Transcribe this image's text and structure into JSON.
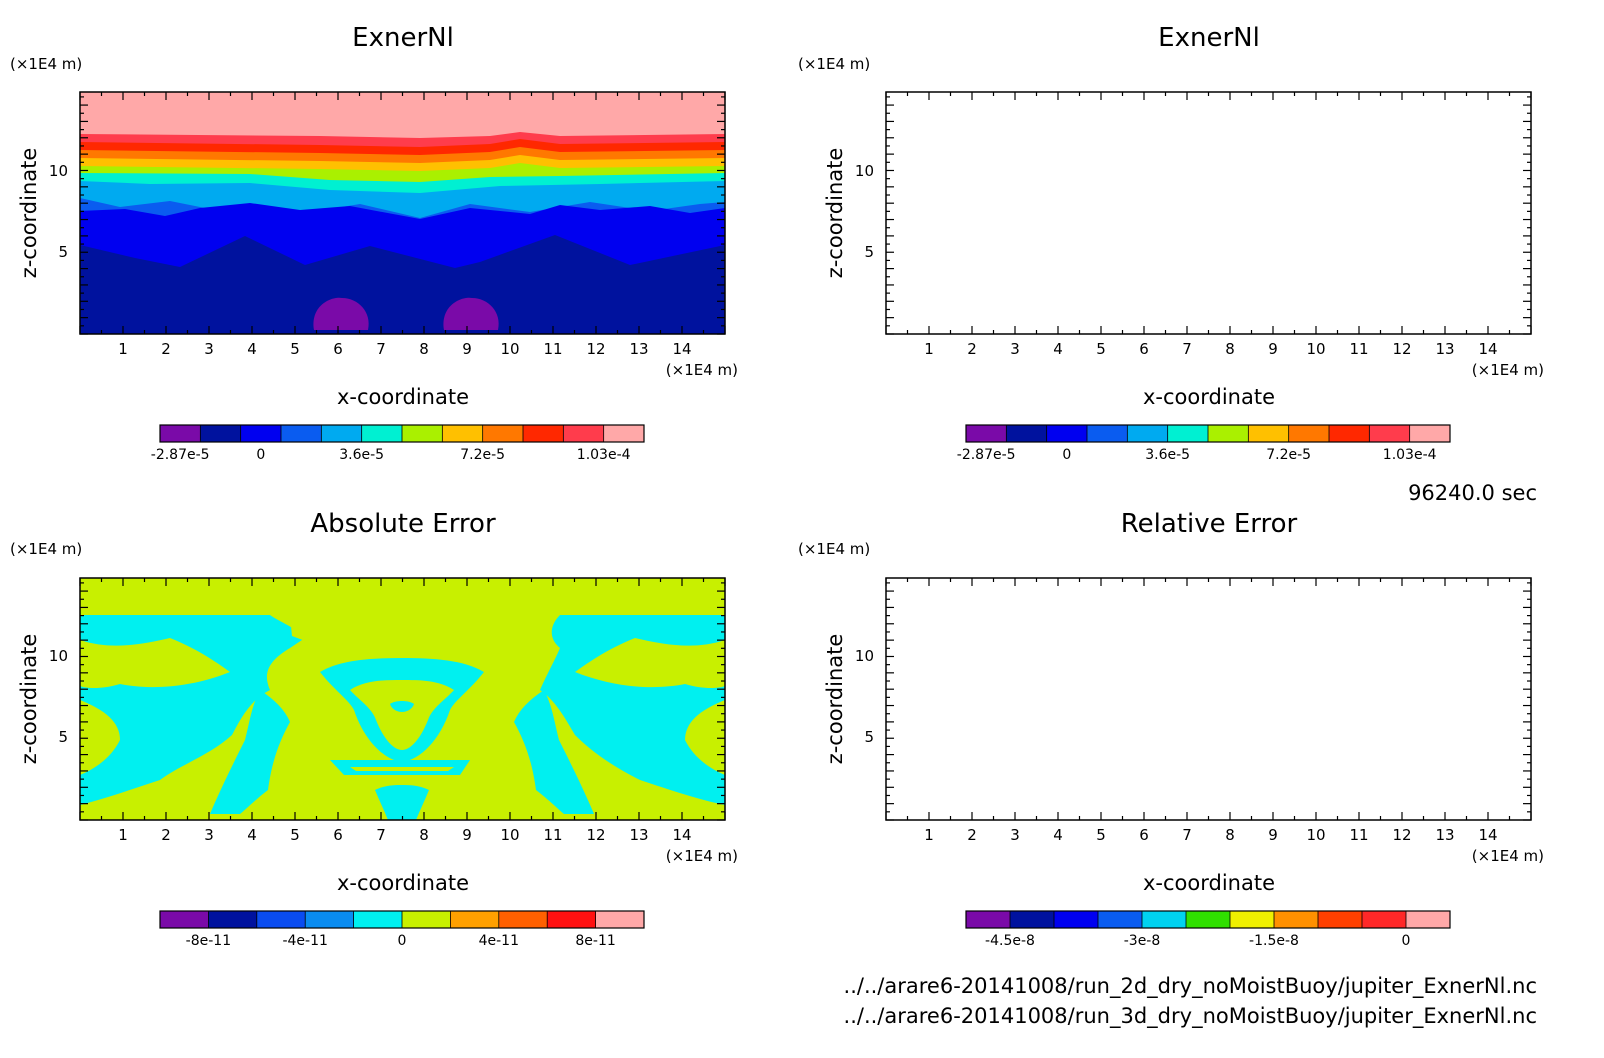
{
  "chart_data": [
    {
      "type": "heatmap",
      "title": "ExnerNl",
      "xlabel": "x-coordinate",
      "ylabel": "z-coordinate",
      "x_unit": "(×1E4 m)",
      "y_unit": "(×1E4 m)",
      "xlim": [
        0,
        15
      ],
      "ylim": [
        0,
        14.8
      ],
      "x_ticks": [
        1,
        2,
        3,
        4,
        5,
        6,
        7,
        8,
        9,
        10,
        11,
        12,
        13,
        14
      ],
      "y_ticks": [
        5,
        10
      ],
      "colorbar": {
        "colors": [
          "#7a0aa8",
          "#00129e",
          "#0000f0",
          "#0a5cf0",
          "#00aaf0",
          "#00f0d2",
          "#aaf000",
          "#ffc000",
          "#ff7800",
          "#ff2800",
          "#ff3c4c",
          "#ffa8a8"
        ],
        "tick_labels": [
          "-2.87e-5",
          "0",
          "3.6e-5",
          "7.2e-5",
          "1.03e-4"
        ],
        "tick_bins": [
          0.5,
          2.5,
          5,
          8,
          11
        ]
      }
    },
    {
      "type": "heatmap",
      "title": "ExnerNl",
      "xlabel": "x-coordinate",
      "ylabel": "z-coordinate",
      "x_unit": "(×1E4 m)",
      "y_unit": "(×1E4 m)",
      "xlim": [
        0,
        15
      ],
      "ylim": [
        0,
        14.8
      ],
      "x_ticks": [
        1,
        2,
        3,
        4,
        5,
        6,
        7,
        8,
        9,
        10,
        11,
        12,
        13,
        14
      ],
      "y_ticks": [
        5,
        10
      ],
      "colorbar": {
        "colors": [
          "#7a0aa8",
          "#00129e",
          "#0000f0",
          "#0a5cf0",
          "#00aaf0",
          "#00f0d2",
          "#aaf000",
          "#ffc000",
          "#ff7800",
          "#ff2800",
          "#ff3c4c",
          "#ffa8a8"
        ],
        "tick_labels": [
          "-2.87e-5",
          "0",
          "3.6e-5",
          "7.2e-5",
          "1.03e-4"
        ],
        "tick_bins": [
          0.5,
          2.5,
          5,
          8,
          11
        ]
      }
    },
    {
      "type": "heatmap",
      "title": "Absolute Error",
      "xlabel": "x-coordinate",
      "ylabel": "z-coordinate",
      "x_unit": "(×1E4 m)",
      "y_unit": "(×1E4 m)",
      "xlim": [
        0,
        15
      ],
      "ylim": [
        0,
        14.8
      ],
      "x_ticks": [
        1,
        2,
        3,
        4,
        5,
        6,
        7,
        8,
        9,
        10,
        11,
        12,
        13,
        14
      ],
      "y_ticks": [
        5,
        10
      ],
      "colorbar": {
        "colors": [
          "#7a0aa8",
          "#00129e",
          "#0a4cf0",
          "#0a8cf0",
          "#00f0f0",
          "#c8f000",
          "#ffa000",
          "#ff6000",
          "#ff1010",
          "#ffa8a8"
        ],
        "tick_labels": [
          "-8e-11",
          "-4e-11",
          "0",
          "4e-11",
          "8e-11"
        ],
        "tick_bins": [
          1,
          3,
          5,
          7,
          9
        ]
      }
    },
    {
      "type": "heatmap",
      "title": "Relative Error",
      "xlabel": "x-coordinate",
      "ylabel": "z-coordinate",
      "x_unit": "(×1E4 m)",
      "y_unit": "(×1E4 m)",
      "xlim": [
        0,
        15
      ],
      "ylim": [
        0,
        14.8
      ],
      "x_ticks": [
        1,
        2,
        3,
        4,
        5,
        6,
        7,
        8,
        9,
        10,
        11,
        12,
        13,
        14
      ],
      "y_ticks": [
        5,
        10
      ],
      "colorbar": {
        "colors": [
          "#7a0aa8",
          "#00129e",
          "#0000f0",
          "#0a5cf0",
          "#00d2f0",
          "#30e000",
          "#f0f000",
          "#ff9000",
          "#ff4000",
          "#ff2828",
          "#ffa8a8"
        ],
        "tick_labels": [
          "-4.5e-8",
          "-3e-8",
          "-1.5e-8",
          "0"
        ],
        "tick_bins": [
          1,
          4,
          7,
          10
        ]
      }
    }
  ],
  "time_label": "96240.0 sec",
  "file_paths": [
    "../../arare6-20141008/run_2d_dry_noMoistBuoy/jupiter_ExnerNl.nc",
    "../../arare6-20141008/run_3d_dry_noMoistBuoy/jupiter_ExnerNl.nc"
  ]
}
